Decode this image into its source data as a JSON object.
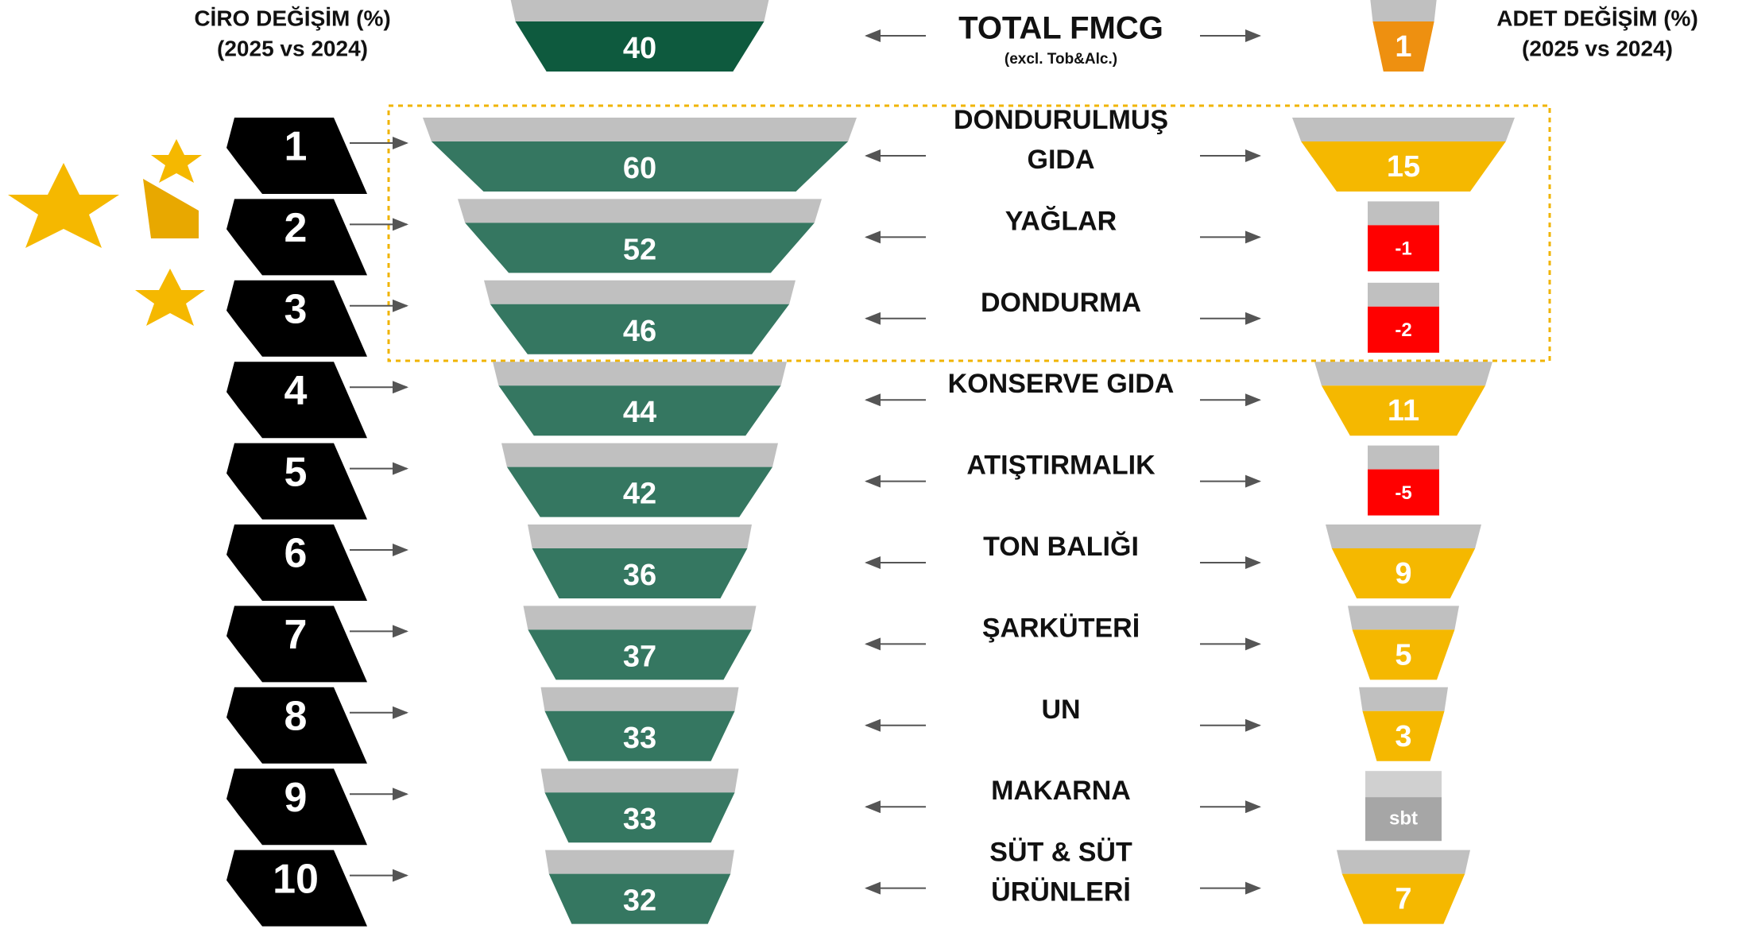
{
  "header": {
    "left_title": "CİRO DEĞİŞİM (%)",
    "left_subtitle": "(2025 vs 2024)",
    "right_title": "ADET DEĞİŞİM (%)",
    "right_subtitle": "(2025 vs 2024)"
  },
  "total": {
    "label": "TOTAL FMCG",
    "note": "(excl. Tob&Alc.)",
    "ciro": 40,
    "adet": 1
  },
  "rows": [
    {
      "rank": 1,
      "label": [
        "DONDURULMUŞ",
        "GIDA"
      ],
      "ciro": 60,
      "adet": 15
    },
    {
      "rank": 2,
      "label": [
        "YAĞLAR"
      ],
      "ciro": 52,
      "adet": -1
    },
    {
      "rank": 3,
      "label": [
        "DONDURMA"
      ],
      "ciro": 46,
      "adet": -2
    },
    {
      "rank": 4,
      "label": [
        "KONSERVE GIDA"
      ],
      "ciro": 44,
      "adet": 11
    },
    {
      "rank": 5,
      "label": [
        "ATIŞTIRMALIK"
      ],
      "ciro": 42,
      "adet": -5
    },
    {
      "rank": 6,
      "label": [
        "TON BALIĞI"
      ],
      "ciro": 36,
      "adet": 9
    },
    {
      "rank": 7,
      "label": [
        "ŞARKÜTERİ"
      ],
      "ciro": 37,
      "adet": 5
    },
    {
      "rank": 8,
      "label": [
        "UN"
      ],
      "ciro": 33,
      "adet": 3
    },
    {
      "rank": 9,
      "label": [
        "MAKARNA"
      ],
      "ciro": 33,
      "adet": "sbt"
    },
    {
      "rank": 10,
      "label": [
        "SÜT & SÜT",
        "ÜRÜNLERİ"
      ],
      "ciro": 32,
      "adet": 7
    }
  ]
}
